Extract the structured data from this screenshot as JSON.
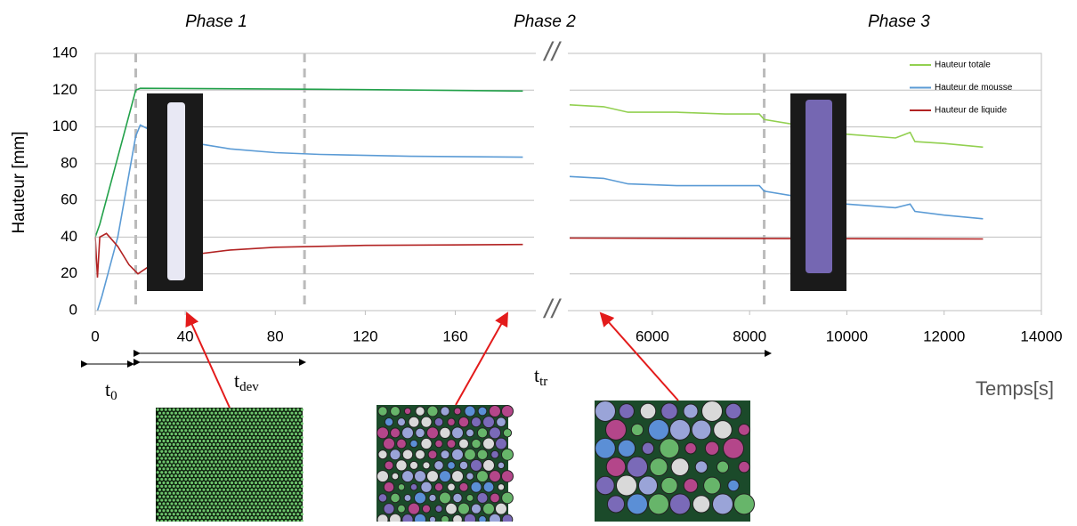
{
  "phases": [
    "Phase 1",
    "Phase 2",
    "Phase 3"
  ],
  "xlabel": "Temps[s]",
  "durations": [
    {
      "main": "t",
      "sub": "0"
    },
    {
      "main": "t",
      "sub": "dev"
    },
    {
      "main": "t",
      "sub": "tr"
    }
  ],
  "chart_data": [
    {
      "type": "line",
      "ylabel": "Hauteur [mm]",
      "xlim": [
        0,
        195
      ],
      "xticks": [
        0,
        40,
        80,
        120,
        160
      ],
      "ylim": [
        0,
        140
      ],
      "yticks": [
        0,
        20,
        40,
        60,
        80,
        100,
        120,
        140
      ],
      "grid": true,
      "vlines": [
        18,
        93
      ],
      "series": [
        {
          "name": "Hauteur totale",
          "color": "#22a14a",
          "x": [
            0,
            2,
            18,
            20,
            100,
            190
          ],
          "values": [
            40,
            47,
            120,
            121,
            120.5,
            119.5
          ]
        },
        {
          "name": "Hauteur de mousse",
          "color": "#5b9bd5",
          "x": [
            1,
            3,
            10,
            18,
            20,
            25,
            40,
            60,
            80,
            100,
            140,
            190
          ],
          "values": [
            0,
            8,
            40,
            95,
            101,
            98,
            92,
            88,
            86,
            85,
            84,
            83.5
          ]
        },
        {
          "name": "Hauteur de liquide",
          "color": "#b22222",
          "x": [
            0,
            1,
            2,
            5,
            10,
            15,
            19,
            25,
            40,
            60,
            80,
            120,
            190
          ],
          "values": [
            40,
            18,
            40,
            42,
            35,
            25,
            20,
            25,
            30,
            33,
            34.5,
            35.5,
            36
          ]
        }
      ]
    },
    {
      "type": "line",
      "xlim": [
        4300,
        14000
      ],
      "xticks": [
        6000,
        8000,
        10000,
        12000,
        14000
      ],
      "ylim": [
        0,
        140
      ],
      "grid": true,
      "legend": "top-right",
      "vlines": [
        8300
      ],
      "series": [
        {
          "name": "Hauteur totale",
          "color": "#92d050",
          "x": [
            4300,
            5000,
            5500,
            6500,
            7500,
            8200,
            8300,
            9000,
            10000,
            11000,
            11300,
            11400,
            12000,
            12800
          ],
          "values": [
            112,
            111,
            108,
            108,
            107,
            107,
            104,
            101,
            96,
            94,
            97,
            92,
            91,
            89
          ]
        },
        {
          "name": "Hauteur de mousse",
          "color": "#5b9bd5",
          "x": [
            4300,
            5000,
            5500,
            6500,
            8200,
            8300,
            9000,
            10000,
            11000,
            11300,
            11400,
            12000,
            12800
          ],
          "values": [
            73,
            72,
            69,
            68,
            68,
            65,
            62,
            58,
            56,
            58,
            54,
            52,
            50
          ]
        },
        {
          "name": "Hauteur de liquide",
          "color": "#b22222",
          "x": [
            4300,
            12800
          ],
          "values": [
            39.5,
            39
          ]
        }
      ]
    }
  ]
}
